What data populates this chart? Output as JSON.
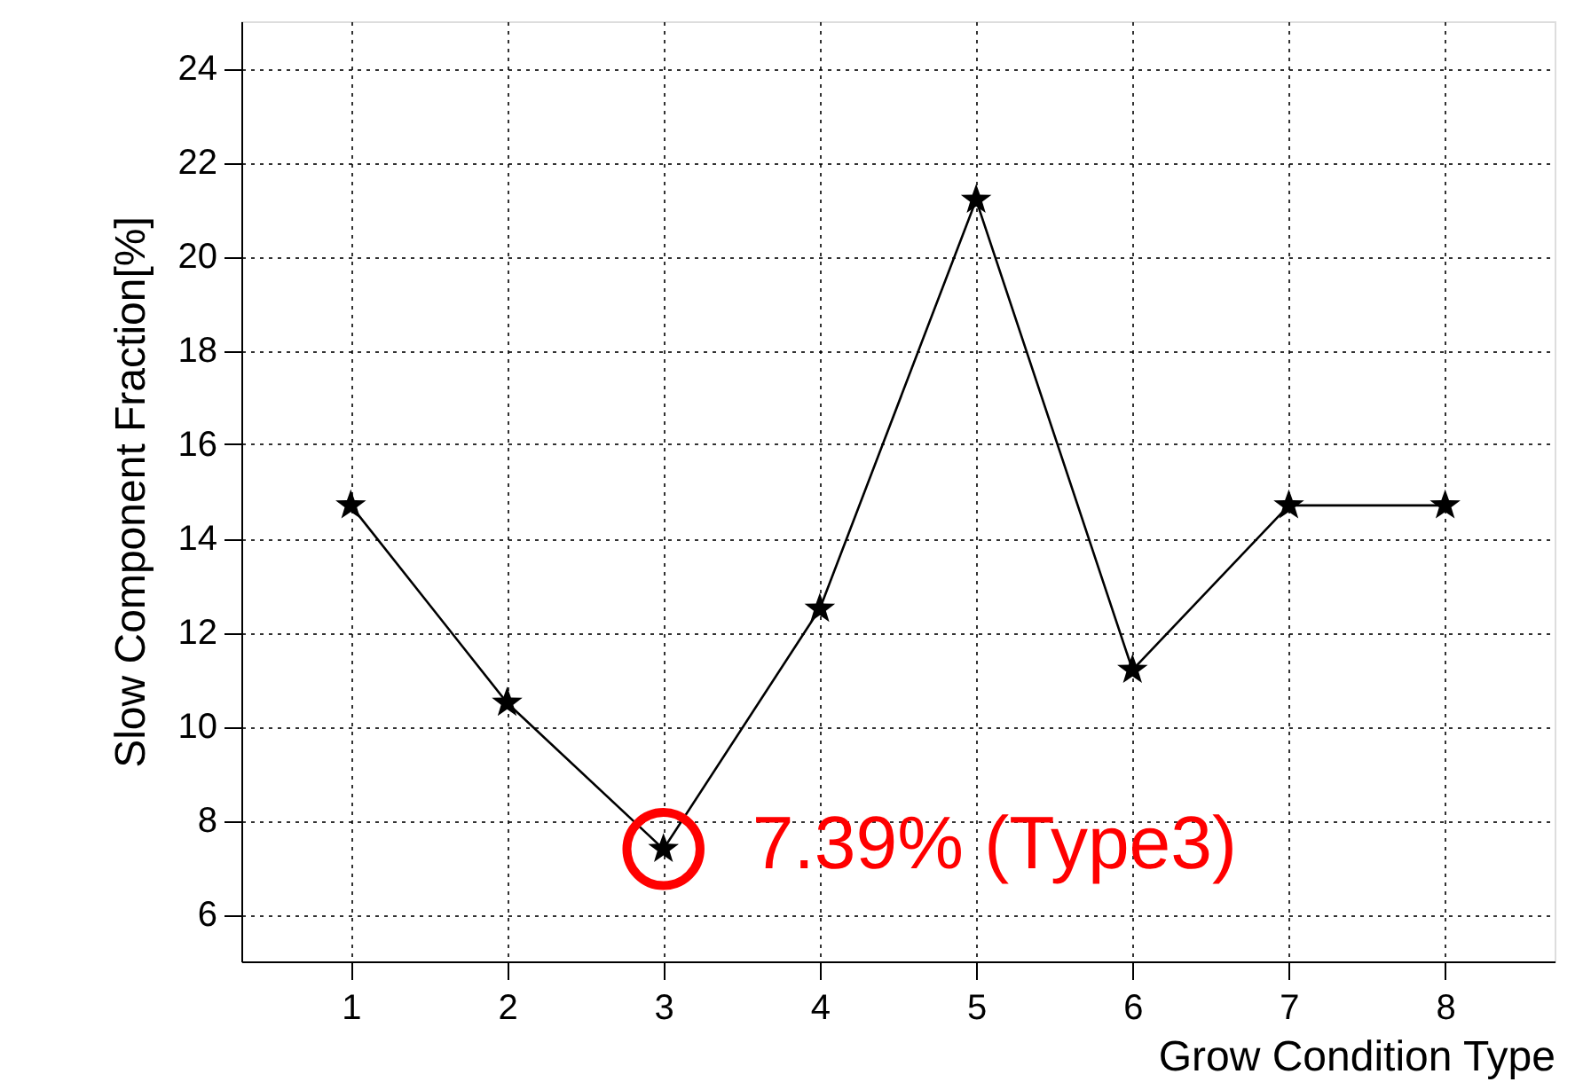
{
  "chart_data": {
    "type": "line",
    "xlabel": "Grow Condition Type",
    "ylabel": "Slow Component Fraction[%]",
    "x": [
      1,
      2,
      3,
      4,
      5,
      6,
      7,
      8
    ],
    "series": [
      {
        "color": "#000000",
        "values": [
          14.7,
          10.5,
          7.39,
          12.5,
          21.2,
          11.2,
          14.7,
          14.7
        ]
      }
    ],
    "xlim": [
      0.3,
      8.7
    ],
    "xticks": [
      1,
      2,
      3,
      4,
      5,
      6,
      7,
      8
    ],
    "ylim": [
      5,
      25
    ],
    "yticks": [
      6,
      8,
      10,
      12,
      14,
      16,
      18,
      20,
      22,
      24
    ],
    "grid": true,
    "marker": "star",
    "line_style": "solid",
    "annotations": [
      {
        "text": "7.39% (Type3)",
        "x": 3,
        "y": 7.39
      }
    ]
  }
}
